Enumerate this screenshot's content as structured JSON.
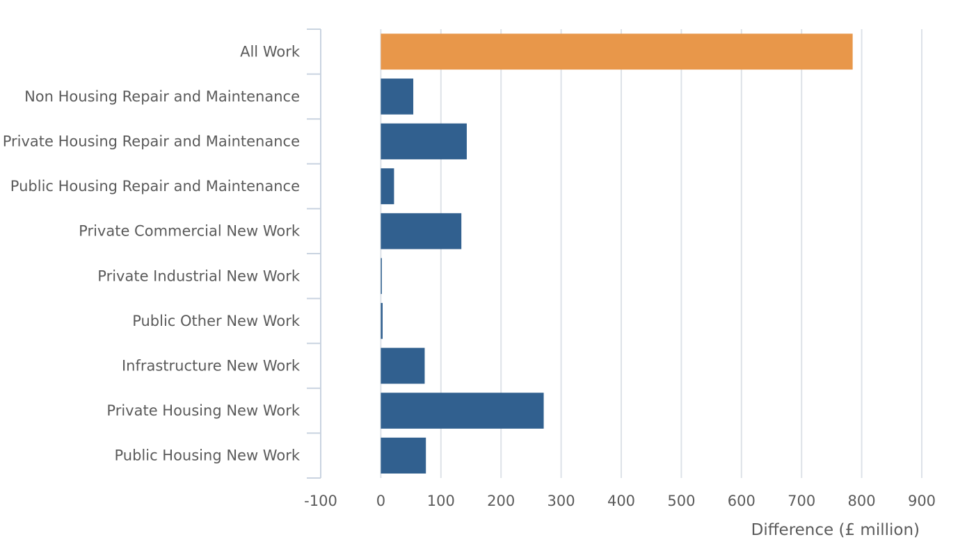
{
  "chart_data": {
    "type": "bar",
    "orientation": "horizontal",
    "title": "",
    "ylabel": "",
    "xlabel": "Difference (£ million)",
    "categories": [
      "All Work",
      "Non Housing Repair and Maintenance",
      "Private Housing Repair and Maintenance",
      "Public Housing Repair and Maintenance",
      "Private Commercial New Work",
      "Private Industrial New Work",
      "Public Other New Work",
      "Infrastructure New Work",
      "Private Housing New Work",
      "Public Housing New Work"
    ],
    "values": [
      785,
      54,
      143,
      22,
      134,
      1,
      3,
      73,
      271,
      75
    ],
    "xlim": [
      -100,
      900
    ],
    "xticks": [
      -100,
      0,
      100,
      200,
      300,
      400,
      500,
      600,
      700,
      800,
      900
    ],
    "xtick_labels": [
      "-100",
      "0",
      "100",
      "200",
      "300",
      "400",
      "500",
      "600",
      "700",
      "800",
      "900"
    ],
    "grid": "vertical",
    "colors": {
      "highlight": "#e8974a",
      "default": "#31608f",
      "grid": "#dde2e8",
      "axis": "#c9d3e0",
      "text": "#5a5a5a"
    },
    "highlight_category": "All Work"
  }
}
